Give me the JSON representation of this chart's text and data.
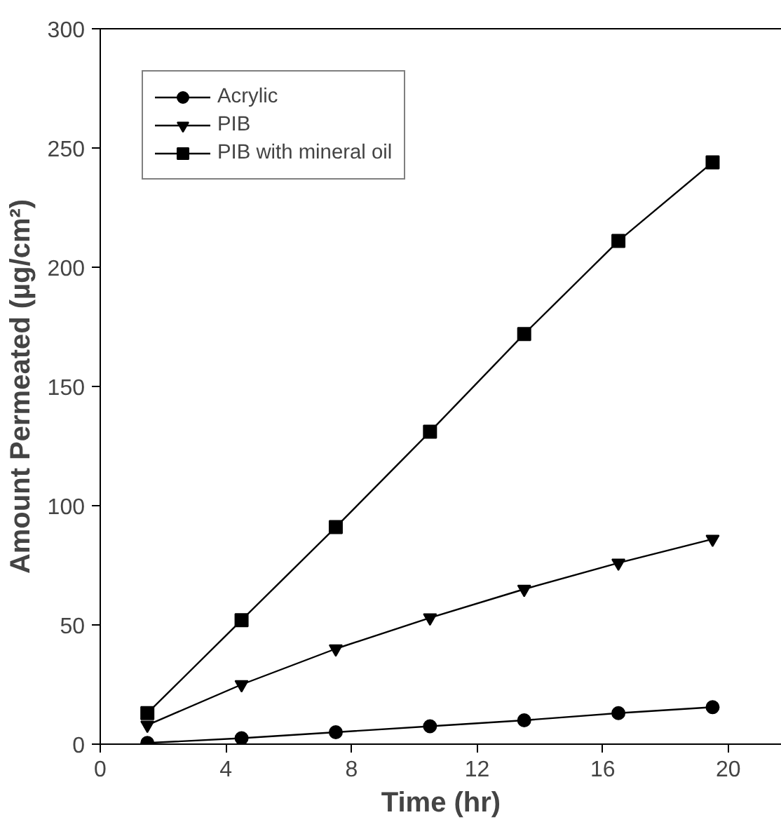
{
  "chart_data": {
    "type": "line",
    "xlabel": "Time (hr)",
    "ylabel": "Amount Permeated (µg/cm²)",
    "x": [
      1.5,
      4.5,
      7.5,
      10.5,
      13.5,
      16.5,
      19.5
    ],
    "xlim": [
      0,
      21.7
    ],
    "xticks": [
      0,
      4,
      8,
      12,
      16,
      20
    ],
    "ylim": [
      0,
      300
    ],
    "yticks": [
      0,
      50,
      100,
      150,
      200,
      250,
      300
    ],
    "grid": false,
    "legend": "top left",
    "line_style": "solid",
    "series": [
      {
        "name": "Acrylic",
        "color": "#000000",
        "marker": "circle",
        "values": [
          0.5,
          2.5,
          5,
          7.5,
          10,
          13,
          15.5
        ]
      },
      {
        "name": "PIB",
        "color": "#000000",
        "marker": "triangle",
        "values": [
          8,
          25,
          40,
          53,
          65,
          76,
          86
        ]
      },
      {
        "name": "PIB with mineral oil",
        "color": "#000000",
        "marker": "square",
        "values": [
          13,
          52,
          91,
          131,
          172,
          211,
          244
        ]
      }
    ]
  }
}
